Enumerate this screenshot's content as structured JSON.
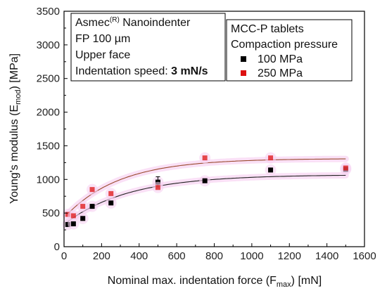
{
  "chart_data": {
    "type": "scatter",
    "xlim": [
      0,
      1600
    ],
    "ylim": [
      0,
      3500
    ],
    "x_ticks": [
      "0",
      "200",
      "400",
      "600",
      "800",
      "1000",
      "1200",
      "1400",
      "1600"
    ],
    "y_ticks": [
      "0",
      "500",
      "1000",
      "1500",
      "2000",
      "2500",
      "3000",
      "3500"
    ],
    "xlabel": {
      "main": "Nominal max. indentation force (F",
      "sub": "max",
      "end": ") [mN]"
    },
    "ylabel": {
      "main": "Young's modulus (E",
      "sub": "mod",
      "end": ") [MPa]"
    },
    "info_box": {
      "line1_main": "Asmec",
      "line1_sup": "(R)",
      "line1_end": " Nanoindenter",
      "line2": "FP 100 µm",
      "line3": "Upper face",
      "line4_prefix": "Indentation speed: ",
      "line4_bold": "3 mN/s"
    },
    "legend": {
      "title1": "MCC-P tablets",
      "title2": "Compaction pressure",
      "position": "top-right"
    },
    "series": [
      {
        "name": "100 MPa",
        "color": "#000000",
        "points": [
          {
            "x": 20,
            "y": 330
          },
          {
            "x": 50,
            "y": 340
          },
          {
            "x": 100,
            "y": 420
          },
          {
            "x": 150,
            "y": 600
          },
          {
            "x": 250,
            "y": 650
          },
          {
            "x": 500,
            "y": 960,
            "err": 80
          },
          {
            "x": 750,
            "y": 980
          },
          {
            "x": 1100,
            "y": 1140
          },
          {
            "x": 1500,
            "y": 1150
          }
        ],
        "fit": {
          "y0": 330,
          "A": 740,
          "t": 340,
          "color": "#222222"
        }
      },
      {
        "name": "250 MPa",
        "color": "#dd1111",
        "points": [
          {
            "x": 20,
            "y": 480
          },
          {
            "x": 50,
            "y": 460
          },
          {
            "x": 100,
            "y": 600
          },
          {
            "x": 150,
            "y": 850
          },
          {
            "x": 250,
            "y": 790
          },
          {
            "x": 500,
            "y": 880
          },
          {
            "x": 750,
            "y": 1320
          },
          {
            "x": 1100,
            "y": 1320
          },
          {
            "x": 1500,
            "y": 1170
          }
        ],
        "fit": {
          "y0": 430,
          "A": 880,
          "t": 290,
          "color": "#9a4a2e"
        }
      }
    ]
  }
}
